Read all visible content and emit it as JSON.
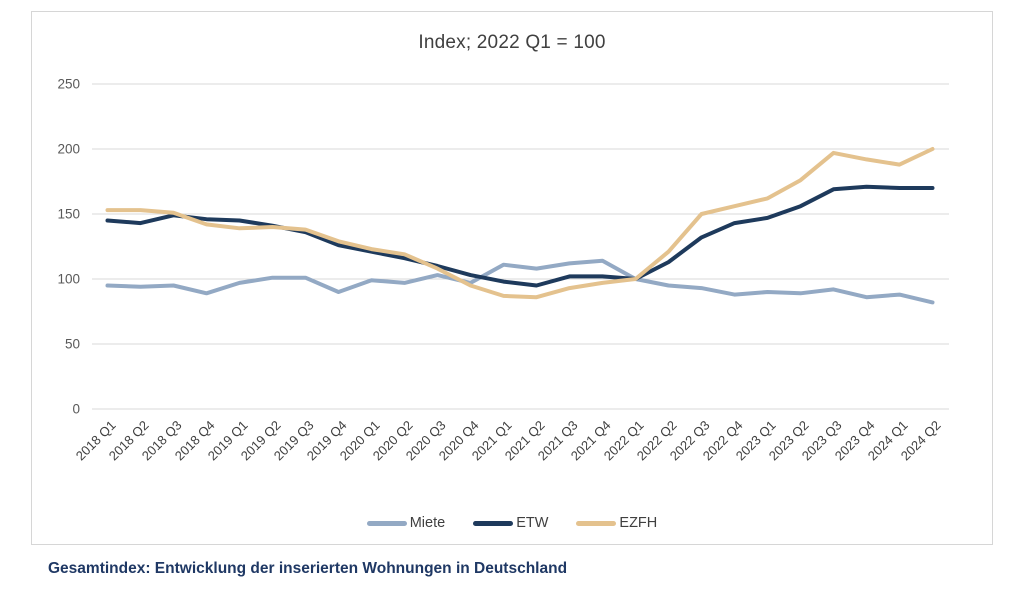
{
  "chart_data": {
    "type": "line",
    "title": "Index; 2022 Q1 = 100",
    "xlabel": "",
    "ylabel": "",
    "ylim": [
      0,
      250
    ],
    "y_ticks": [
      0,
      50,
      100,
      150,
      200,
      250
    ],
    "grid": true,
    "legend_position": "bottom",
    "categories": [
      "2018 Q1",
      "2018 Q2",
      "2018 Q3",
      "2018 Q4",
      "2019 Q1",
      "2019 Q2",
      "2019 Q3",
      "2019 Q4",
      "2020 Q1",
      "2020 Q2",
      "2020 Q3",
      "2020 Q4",
      "2021 Q1",
      "2021 Q2",
      "2021 Q3",
      "2021 Q4",
      "2022 Q1",
      "2022 Q2",
      "2022 Q3",
      "2022 Q4",
      "2023 Q1",
      "2023 Q2",
      "2023 Q3",
      "2023 Q4",
      "2024 Q1",
      "2024 Q2"
    ],
    "series": [
      {
        "name": "Miete",
        "color": "#93a9c4",
        "values": [
          95,
          94,
          95,
          89,
          97,
          101,
          101,
          90,
          99,
          97,
          103,
          97,
          111,
          108,
          112,
          114,
          100,
          95,
          93,
          88,
          90,
          89,
          92,
          86,
          88,
          82
        ]
      },
      {
        "name": "ETW",
        "color": "#1e3a5c",
        "values": [
          145,
          143,
          149,
          146,
          145,
          141,
          136,
          126,
          121,
          116,
          110,
          103,
          98,
          95,
          102,
          102,
          100,
          113,
          132,
          143,
          147,
          156,
          169,
          171,
          170,
          170
        ]
      },
      {
        "name": "EZFH",
        "color": "#e4c28e",
        "values": [
          153,
          153,
          151,
          142,
          139,
          140,
          138,
          129,
          123,
          119,
          108,
          95,
          87,
          86,
          93,
          97,
          100,
          121,
          150,
          156,
          162,
          176,
          197,
          192,
          188,
          200
        ]
      }
    ]
  },
  "caption": "Gesamtindex: Entwicklung der inserierten Wohnungen in Deutschland",
  "colors": {
    "grid": "#d9d9d9",
    "box_border": "#d6d6d6",
    "title_text": "#404040",
    "ytick_text": "#595959",
    "xlabel_text": "#404040",
    "caption_text": "#1f3864"
  }
}
